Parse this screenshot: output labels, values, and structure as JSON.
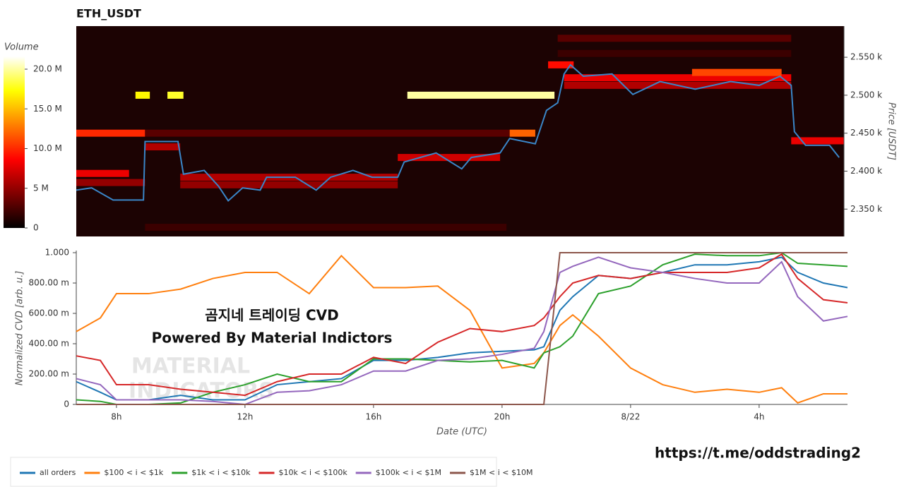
{
  "chart_data": [
    {
      "type": "heatmap",
      "title": "ETH_USDT",
      "y_label": "Price [USDT]",
      "xlim": [
        6.75,
        30.75
      ],
      "ylim": [
        2314,
        2591
      ],
      "yticks": [
        {
          "value": 2350,
          "label": "2.350 k"
        },
        {
          "value": 2400,
          "label": "2.400 k"
        },
        {
          "value": 2450,
          "label": "2.450 k"
        },
        {
          "value": 2500,
          "label": "2.500 k"
        },
        {
          "value": 2550,
          "label": "2.550 k"
        }
      ],
      "colorbar": {
        "title": "Volume",
        "lim": [
          0,
          21.6
        ],
        "ticks": [
          0,
          {
            "value": 5,
            "label": "5 M"
          },
          {
            "value": 10,
            "label": "10.0 M"
          },
          {
            "value": 15,
            "label": "15.0 M"
          },
          {
            "value": 20,
            "label": "20.0 M"
          }
        ]
      },
      "bands": [
        {
          "x": [
            6.75,
            8.9
          ],
          "price": 2450,
          "value": 10
        },
        {
          "x": [
            8.9,
            20.3
          ],
          "price": 2450,
          "value": 3
        },
        {
          "x": [
            20.3,
            21.1
          ],
          "price": 2450,
          "value": 12
        },
        {
          "x": [
            8.6,
            9.05
          ],
          "price": 2500,
          "value": 17
        },
        {
          "x": [
            9.6,
            10.1
          ],
          "price": 2500,
          "value": 18
        },
        {
          "x": [
            17.1,
            21.7
          ],
          "price": 2500,
          "value": 20
        },
        {
          "x": [
            6.75,
            8.4
          ],
          "price": 2397,
          "value": 8
        },
        {
          "x": [
            6.75,
            8.9
          ],
          "price": 2385,
          "value": 5
        },
        {
          "x": [
            8.9,
            10.0
          ],
          "price": 2432,
          "value": 6
        },
        {
          "x": [
            10.0,
            16.8
          ],
          "price": 2382,
          "value": 5
        },
        {
          "x": [
            10.0,
            16.8
          ],
          "price": 2392,
          "value": 6
        },
        {
          "x": [
            16.8,
            20.0
          ],
          "price": 2418,
          "value": 7
        },
        {
          "x": [
            21.5,
            22.3
          ],
          "price": 2540,
          "value": 9
        },
        {
          "x": [
            22.0,
            29.1
          ],
          "price": 2523,
          "value": 8
        },
        {
          "x": [
            22.0,
            29.1
          ],
          "price": 2513,
          "value": 6
        },
        {
          "x": [
            26.0,
            28.8
          ],
          "price": 2530,
          "value": 11
        },
        {
          "x": [
            29.1,
            30.75
          ],
          "price": 2440,
          "value": 8
        },
        {
          "x": [
            8.9,
            20.2
          ],
          "price": 2326,
          "value": 2
        },
        {
          "x": [
            21.8,
            29.1
          ],
          "price": 2575,
          "value": 3
        },
        {
          "x": [
            21.8,
            29.1
          ],
          "price": 2555,
          "value": 2
        }
      ],
      "line": {
        "color": "#3a86c8",
        "x": [
          6.75,
          7.23,
          7.9,
          8.85,
          8.9,
          9.93,
          10.1,
          10.75,
          11.2,
          11.5,
          11.95,
          12.5,
          12.7,
          13.6,
          14.25,
          14.7,
          15.4,
          16.0,
          16.8,
          17.0,
          18.0,
          18.8,
          19.1,
          20.0,
          20.3,
          21.1,
          21.45,
          21.8,
          22.0,
          22.2,
          22.6,
          23.5,
          24.15,
          25.0,
          26.1,
          27.2,
          28.1,
          28.75,
          29.1,
          29.2,
          29.55,
          30.3,
          30.6
        ],
        "values": [
          2375,
          2378,
          2362,
          2362,
          2439,
          2439,
          2396,
          2401,
          2380,
          2361,
          2378,
          2375,
          2392,
          2392,
          2375,
          2392,
          2401,
          2392,
          2392,
          2412,
          2424,
          2403,
          2418,
          2424,
          2443,
          2436,
          2480,
          2490,
          2528,
          2540,
          2525,
          2528,
          2501,
          2518,
          2508,
          2518,
          2513,
          2525,
          2513,
          2452,
          2434,
          2434,
          2418
        ]
      }
    },
    {
      "type": "line",
      "y_label": "Normalized CVD [arb. u.]",
      "x_label": "Date (UTC)",
      "xlim": [
        6.75,
        30.75
      ],
      "ylim": [
        0,
        1.014
      ],
      "xticks": [
        {
          "value": 8,
          "label": "8h"
        },
        {
          "value": 12,
          "label": "12h"
        },
        {
          "value": 16,
          "label": "16h"
        },
        {
          "value": 20,
          "label": "20h"
        },
        {
          "value": 24,
          "label": "8/22"
        },
        {
          "value": 28,
          "label": "4h"
        }
      ],
      "yticks": [
        0,
        {
          "value": 0.2,
          "label": "200.00 m"
        },
        {
          "value": 0.4,
          "label": "400.00 m"
        },
        {
          "value": 0.6,
          "label": "600.00 m"
        },
        {
          "value": 0.8,
          "label": "800.00 m"
        },
        {
          "value": 1,
          "label": "1.000"
        }
      ],
      "x": [
        6.75,
        7.5,
        8,
        9,
        10,
        11,
        12,
        13,
        14,
        15,
        16,
        17,
        18,
        19,
        20,
        21,
        21.3,
        21.8,
        22.2,
        23,
        24,
        25,
        26,
        27,
        28,
        28.7,
        29.2,
        30,
        30.75
      ],
      "series": [
        {
          "name": "all orders",
          "color": "#1f77b4",
          "values": [
            0.15,
            0.08,
            0.03,
            0.03,
            0.06,
            0.03,
            0.03,
            0.13,
            0.15,
            0.17,
            0.29,
            0.29,
            0.31,
            0.34,
            0.35,
            0.36,
            0.38,
            0.62,
            0.71,
            0.85,
            0.83,
            0.87,
            0.92,
            0.92,
            0.94,
            0.97,
            0.87,
            0.8,
            0.77
          ]
        },
        {
          "name": "$100 < i < $1k",
          "color": "#ff7f0e",
          "values": [
            0.48,
            0.57,
            0.73,
            0.73,
            0.76,
            0.83,
            0.87,
            0.87,
            0.73,
            0.98,
            0.77,
            0.77,
            0.78,
            0.62,
            0.24,
            0.27,
            0.34,
            0.52,
            0.59,
            0.45,
            0.24,
            0.13,
            0.08,
            0.1,
            0.08,
            0.11,
            0.01,
            0.07,
            0.07
          ]
        },
        {
          "name": "$1k < i < $10k",
          "color": "#2ca02c",
          "values": [
            0.03,
            0.02,
            0,
            0,
            0.01,
            0.08,
            0.13,
            0.2,
            0.15,
            0.15,
            0.3,
            0.3,
            0.29,
            0.28,
            0.29,
            0.24,
            0.34,
            0.38,
            0.45,
            0.73,
            0.78,
            0.92,
            0.99,
            0.98,
            0.98,
            1,
            0.93,
            0.92,
            0.91
          ]
        },
        {
          "name": "$10k < i < $100k",
          "color": "#d62728",
          "values": [
            0.32,
            0.29,
            0.13,
            0.13,
            0.1,
            0.08,
            0.06,
            0.15,
            0.2,
            0.2,
            0.31,
            0.27,
            0.41,
            0.5,
            0.48,
            0.52,
            0.57,
            0.71,
            0.8,
            0.85,
            0.83,
            0.87,
            0.87,
            0.87,
            0.9,
            0.99,
            0.83,
            0.69,
            0.67
          ]
        },
        {
          "name": "$100k < i < $1M",
          "color": "#9467bd",
          "values": [
            0.17,
            0.13,
            0.03,
            0.03,
            0.03,
            0.02,
            0,
            0.08,
            0.09,
            0.13,
            0.22,
            0.22,
            0.29,
            0.3,
            0.33,
            0.37,
            0.48,
            0.87,
            0.91,
            0.97,
            0.9,
            0.87,
            0.83,
            0.8,
            0.8,
            0.94,
            0.71,
            0.55,
            0.58
          ]
        },
        {
          "name": "$1M < i < $10M",
          "color": "#8c564b",
          "values": [
            0,
            0,
            0,
            0,
            0,
            0,
            0,
            0,
            0,
            0,
            0,
            0,
            0,
            0,
            0,
            0,
            0,
            1,
            1,
            1,
            1,
            1,
            1,
            1,
            1,
            1,
            1,
            1,
            1
          ]
        }
      ],
      "annotations": [
        "곰지네 트레이딩 CVD",
        "Powered By Material Indictors"
      ],
      "watermark": [
        "MATERIAL",
        "INDICATORS"
      ],
      "footer": "https://t.me/oddstrading2"
    }
  ]
}
